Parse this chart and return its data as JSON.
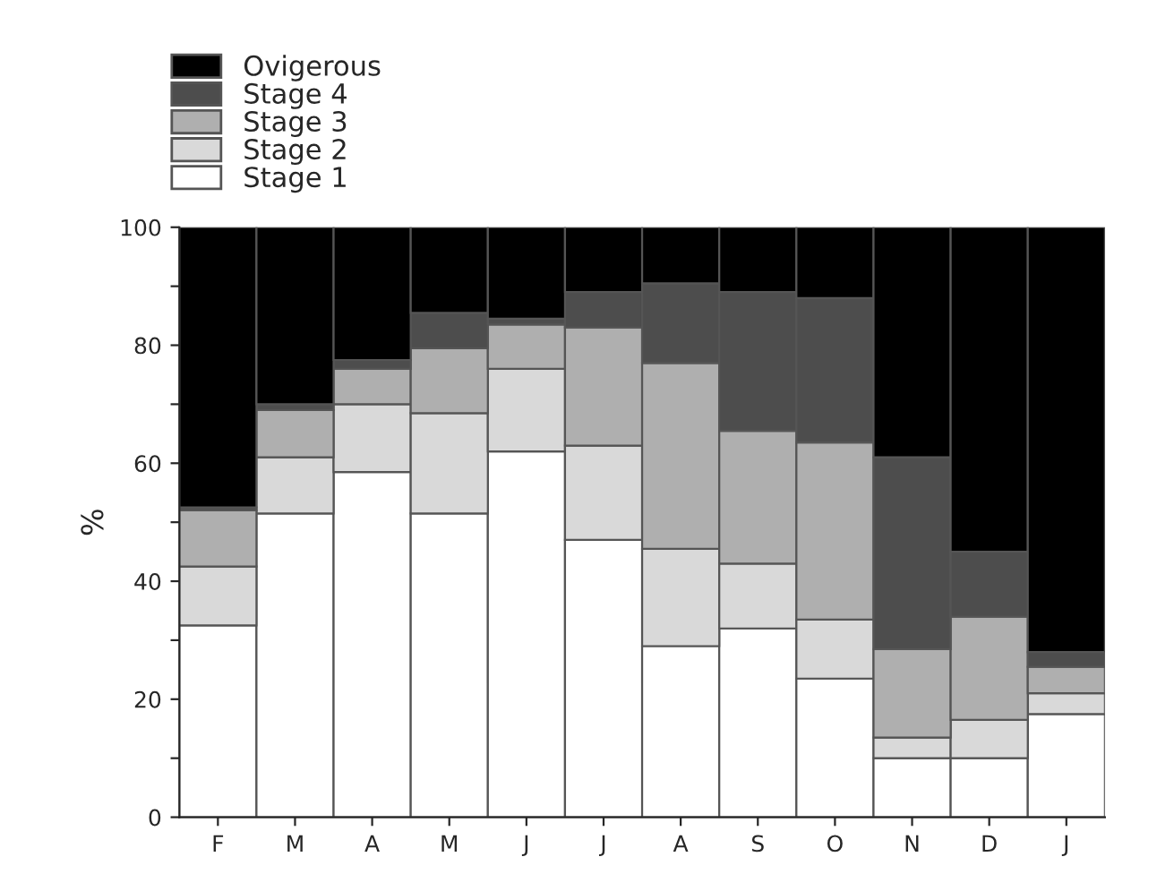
{
  "chart_data": {
    "type": "bar",
    "stacked": true,
    "ylabel": "%",
    "categories": [
      "F",
      "M",
      "A",
      "M",
      "J",
      "J",
      "A",
      "S",
      "O",
      "N",
      "D",
      "J"
    ],
    "series": [
      {
        "name": "Stage 1",
        "color": "#ffffff",
        "values": [
          32.5,
          51.5,
          58.5,
          51.5,
          62,
          47,
          29,
          32,
          23.5,
          10,
          10,
          17.5
        ]
      },
      {
        "name": "Stage 2",
        "color": "#d9d9d9",
        "values": [
          10,
          9.5,
          11.5,
          17,
          14,
          16,
          16.5,
          11,
          10,
          3.5,
          6.5,
          3.5
        ]
      },
      {
        "name": "Stage 3",
        "color": "#afafaf",
        "values": [
          9.5,
          8,
          6,
          11,
          7.5,
          20,
          31.5,
          22.5,
          30,
          15,
          17.5,
          4.5
        ]
      },
      {
        "name": "Stage 4",
        "color": "#4d4d4d",
        "values": [
          0.5,
          1,
          1.5,
          6,
          1,
          6,
          13.5,
          23.5,
          24.5,
          32.5,
          11,
          2.5
        ]
      },
      {
        "name": "Ovigerous",
        "color": "#000000",
        "values": [
          47.5,
          30,
          22.5,
          14.5,
          15.5,
          11,
          9.5,
          11,
          12,
          39,
          55,
          72
        ]
      }
    ],
    "ylim": [
      0,
      100
    ],
    "yticks": [
      0,
      {
        "value": 10,
        "label": null
      },
      20,
      {
        "value": 30,
        "label": null
      },
      40,
      {
        "value": 50,
        "label": null
      },
      60,
      {
        "value": 70,
        "label": null
      },
      80,
      {
        "value": 90,
        "label": null
      },
      100
    ],
    "grid": false,
    "legend": "top left"
  }
}
